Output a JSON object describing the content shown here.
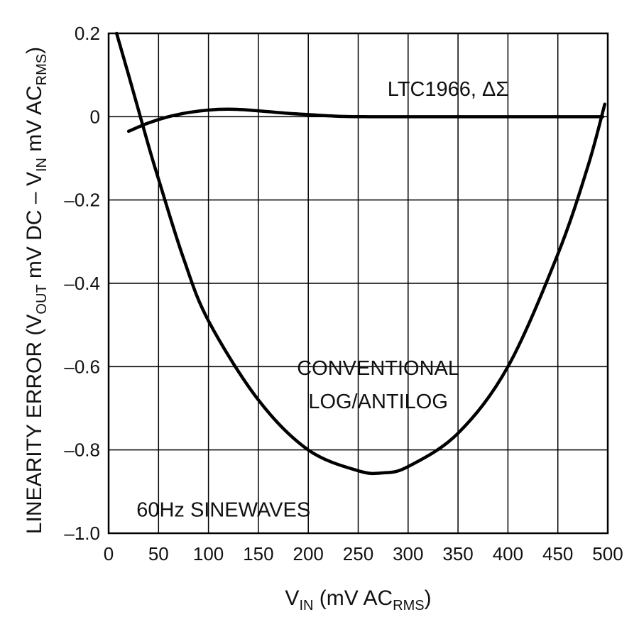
{
  "chart_data": {
    "type": "line",
    "title": "",
    "xlabel": "VIN (mV ACRMS)",
    "xlabel_parts": {
      "main": "V",
      "sub1": "IN",
      "mid": " (mV AC",
      "sub2": "RMS",
      "end": ")"
    },
    "ylabel": "LINEARITY ERROR (VOUT mV DC – VIN mV ACRMS)",
    "ylabel_parts": {
      "a": "LINEARITY ERROR (V",
      "sub1": "OUT",
      "b": " mV DC – V",
      "sub2": "IN",
      "c": " mV AC",
      "sub3": "RMS",
      "d": ")"
    },
    "xlim": [
      0,
      500
    ],
    "ylim": [
      -1.0,
      0.2
    ],
    "x_ticks": [
      "0",
      "50",
      "100",
      "150",
      "200",
      "250",
      "300",
      "350",
      "400",
      "450",
      "500"
    ],
    "y_ticks": [
      "0.2",
      "0",
      "–0.2",
      "–0.4",
      "–0.6",
      "–0.8",
      "–1.0"
    ],
    "grid": true,
    "series": [
      {
        "name": "LTC1966, ΔΣ",
        "color": "#000000",
        "points": [
          [
            20,
            -0.035
          ],
          [
            40,
            -0.015
          ],
          [
            60,
            0.0
          ],
          [
            80,
            0.01
          ],
          [
            100,
            0.016
          ],
          [
            120,
            0.018
          ],
          [
            140,
            0.016
          ],
          [
            160,
            0.012
          ],
          [
            180,
            0.008
          ],
          [
            200,
            0.005
          ],
          [
            230,
            0.001
          ],
          [
            260,
            0.0
          ],
          [
            300,
            0.0
          ],
          [
            350,
            0.0
          ],
          [
            400,
            0.0
          ],
          [
            450,
            0.0
          ],
          [
            495,
            0.0
          ]
        ]
      },
      {
        "name": "CONVENTIONAL LOG/ANTILOG",
        "color": "#000000",
        "points": [
          [
            8,
            0.2
          ],
          [
            20,
            0.1
          ],
          [
            30,
            0.015
          ],
          [
            40,
            -0.07
          ],
          [
            50,
            -0.15
          ],
          [
            75,
            -0.34
          ],
          [
            100,
            -0.49
          ],
          [
            150,
            -0.68
          ],
          [
            200,
            -0.8
          ],
          [
            250,
            -0.85
          ],
          [
            275,
            -0.855
          ],
          [
            300,
            -0.84
          ],
          [
            350,
            -0.76
          ],
          [
            400,
            -0.6
          ],
          [
            450,
            -0.33
          ],
          [
            480,
            -0.12
          ],
          [
            497,
            0.03
          ]
        ]
      }
    ],
    "annotations": [
      {
        "text": "LTC1966, ΔΣ",
        "x": 340,
        "y": 0.05
      },
      {
        "text": "CONVENTIONAL",
        "x": 270,
        "y": -0.62
      },
      {
        "text": "LOG/ANTILOG",
        "x": 270,
        "y": -0.7
      },
      {
        "text": "60Hz SINEWAVES",
        "x": 115,
        "y": -0.96
      }
    ]
  }
}
